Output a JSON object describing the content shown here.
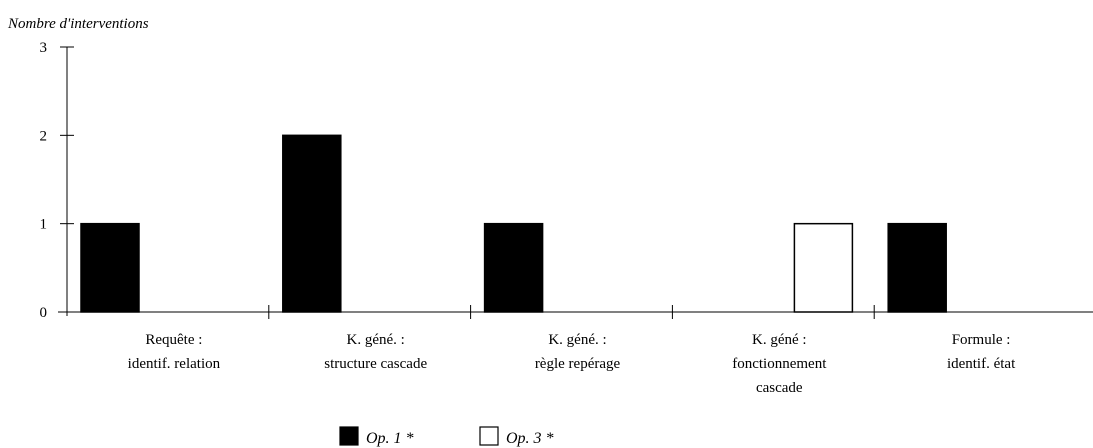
{
  "chart_data": {
    "type": "bar",
    "ylabel": "Nombre d'interventions",
    "ylim": [
      0,
      3
    ],
    "yticks": [
      0,
      1,
      2,
      3
    ],
    "grid": false,
    "legend_position": "bottom",
    "categories": [
      [
        "Requête :",
        "identif. relation"
      ],
      [
        "K. géné. :",
        "structure cascade"
      ],
      [
        "K. géné. :",
        "règle repérage"
      ],
      [
        "K. géné :",
        "fonctionnement",
        "cascade"
      ],
      [
        "Formule :",
        "identif. état"
      ]
    ],
    "series": [
      {
        "name": "Op. 1 *",
        "color": "#000000",
        "values": [
          1,
          2,
          1,
          0,
          1
        ]
      },
      {
        "name": "Op. 3 *",
        "color": "#ffffff",
        "values": [
          0,
          0,
          0,
          1,
          0
        ]
      }
    ]
  }
}
